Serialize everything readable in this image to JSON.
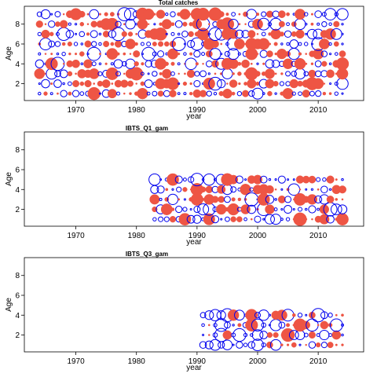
{
  "colors": {
    "positive": "#ee5544",
    "negative": "#0000ee"
  },
  "chart_data": [
    {
      "type": "scatter",
      "subtype": "bubble",
      "title": "Total catches",
      "xlabel": "year",
      "ylabel": "Age",
      "xlim": [
        1961.5,
        2017.5
      ],
      "ylim": [
        0.3,
        9.8
      ],
      "xticks": [
        1970,
        1980,
        1990,
        2000,
        2010
      ],
      "yticks": [
        2,
        4,
        6,
        8
      ],
      "year_range": [
        1964,
        2014
      ],
      "ages": [
        1,
        2,
        3,
        4,
        5,
        6,
        7,
        8,
        9
      ],
      "legend": "none",
      "grid": false,
      "seed": 11
    },
    {
      "type": "scatter",
      "subtype": "bubble",
      "title": "IBTS_Q1_gam",
      "xlabel": "year",
      "ylabel": "Age",
      "xlim": [
        1961.5,
        2017.5
      ],
      "ylim": [
        0.3,
        9.8
      ],
      "xticks": [
        1970,
        1980,
        1990,
        2000,
        2010
      ],
      "yticks": [
        2,
        4,
        6,
        8
      ],
      "year_range": [
        1983,
        2014
      ],
      "ages": [
        1,
        2,
        3,
        4,
        5
      ],
      "legend": "none",
      "grid": false,
      "seed": 23
    },
    {
      "type": "scatter",
      "subtype": "bubble",
      "title": "IBTS_Q3_gam",
      "xlabel": "year",
      "ylabel": "Age",
      "xlim": [
        1961.5,
        2017.5
      ],
      "ylim": [
        0.3,
        9.8
      ],
      "xticks": [
        1970,
        1980,
        1990,
        2000,
        2010
      ],
      "yticks": [
        2,
        4,
        6,
        8
      ],
      "year_range": [
        1991,
        2014
      ],
      "ages": [
        1,
        2,
        3,
        4
      ],
      "legend": "none",
      "grid": false,
      "seed": 37
    }
  ]
}
